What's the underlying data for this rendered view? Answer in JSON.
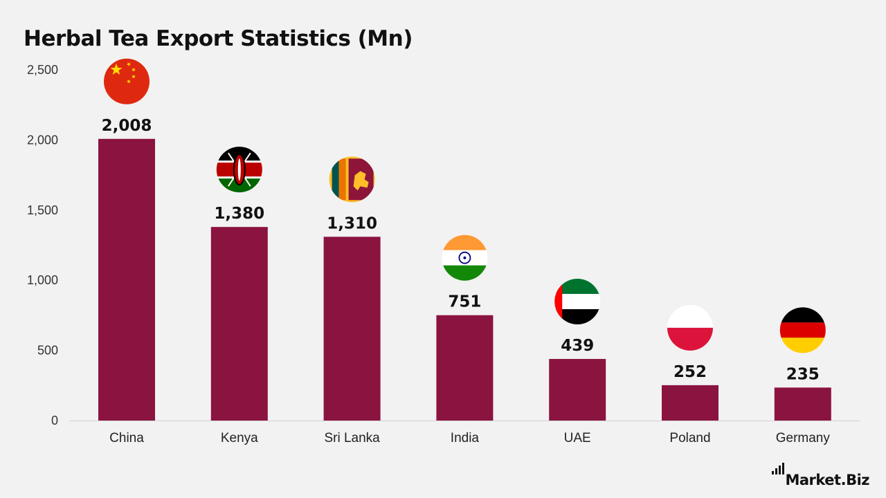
{
  "chart_data": {
    "type": "bar",
    "title": "Herbal Tea Export Statistics (Mn)",
    "categories": [
      "China",
      "Kenya",
      "Sri Lanka",
      "India",
      "UAE",
      "Poland",
      "Germany"
    ],
    "values": [
      2008,
      1380,
      1310,
      751,
      439,
      252,
      235
    ],
    "data_labels": [
      "2,008",
      "1,380",
      "1,310",
      "751",
      "439",
      "252",
      "235"
    ],
    "yticks": [
      "0",
      "500",
      "1,000",
      "1,500",
      "2,000",
      "2,500"
    ],
    "ytick_values": [
      0,
      500,
      1000,
      1500,
      2000,
      2500
    ],
    "ylim": [
      0,
      2500
    ],
    "xlabel": "",
    "ylabel": "",
    "grid": false,
    "legend": "none",
    "bar_color": "#8b1340",
    "flag_icons": [
      "china-flag-icon",
      "kenya-flag-icon",
      "sri-lanka-flag-icon",
      "india-flag-icon",
      "uae-flag-icon",
      "poland-flag-icon",
      "germany-flag-icon"
    ]
  },
  "branding": {
    "logo_text": "Market.Biz",
    "logo_icon": "bar-chart-icon"
  }
}
